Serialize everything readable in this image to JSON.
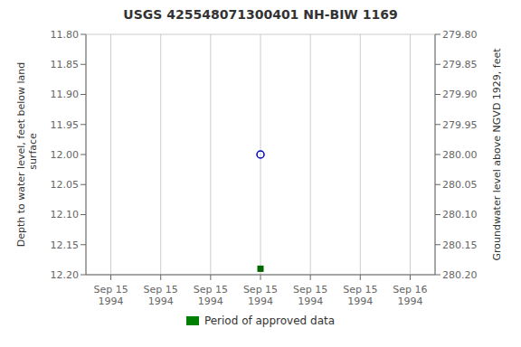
{
  "chart_data": {
    "type": "scatter",
    "title": "USGS 425548071300401 NH-BIW 1169",
    "y_label": "Depth to water level, feet below land\n  surface",
    "y2_label": "Groundwater level above NGVD 1929, feet",
    "categories": [
      "Sep 15\n1994",
      "Sep 15\n1994",
      "Sep 15\n1994",
      "Sep 15\n1994",
      "Sep 15\n1994",
      "Sep 15\n1994",
      "Sep 16\n1994"
    ],
    "series": [
      {
        "type": "scatter",
        "color": "#0000CC",
        "marker": "open_circle",
        "values": [
          null,
          null,
          null,
          12.0,
          null,
          null,
          null
        ]
      },
      {
        "type": "scatter",
        "color": "#006600",
        "marker": "square",
        "values": [
          null,
          null,
          null,
          12.19,
          null,
          null,
          null
        ]
      },
      {
        "name": "Period of approved data",
        "type": "bar",
        "color": "#008000",
        "values": [
          null,
          null,
          null,
          null,
          null,
          null,
          null
        ]
      }
    ],
    "ylim": [
      12.2,
      11.8
    ],
    "yticks": [
      {
        "value": 11.8,
        "label": "11.80"
      },
      11.85,
      {
        "value": 11.9,
        "label": "11.90"
      },
      11.95,
      {
        "value": 12.0,
        "label": "12.00"
      },
      12.05,
      {
        "value": 12.1,
        "label": "12.10"
      },
      12.15,
      {
        "value": 12.2,
        "label": "12.20"
      }
    ],
    "y2lim": [
      280.2,
      279.8
    ],
    "y2ticks": [
      {
        "value": 280.2,
        "label": "280.20"
      },
      280.15,
      {
        "value": 280.1,
        "label": "280.10"
      },
      280.05,
      {
        "value": 280.0,
        "label": "280.00"
      },
      279.95,
      {
        "value": 279.9,
        "label": "279.90"
      },
      279.85,
      {
        "value": 279.8,
        "label": "279.80"
      }
    ],
    "grid": true,
    "legend": "bottom"
  }
}
